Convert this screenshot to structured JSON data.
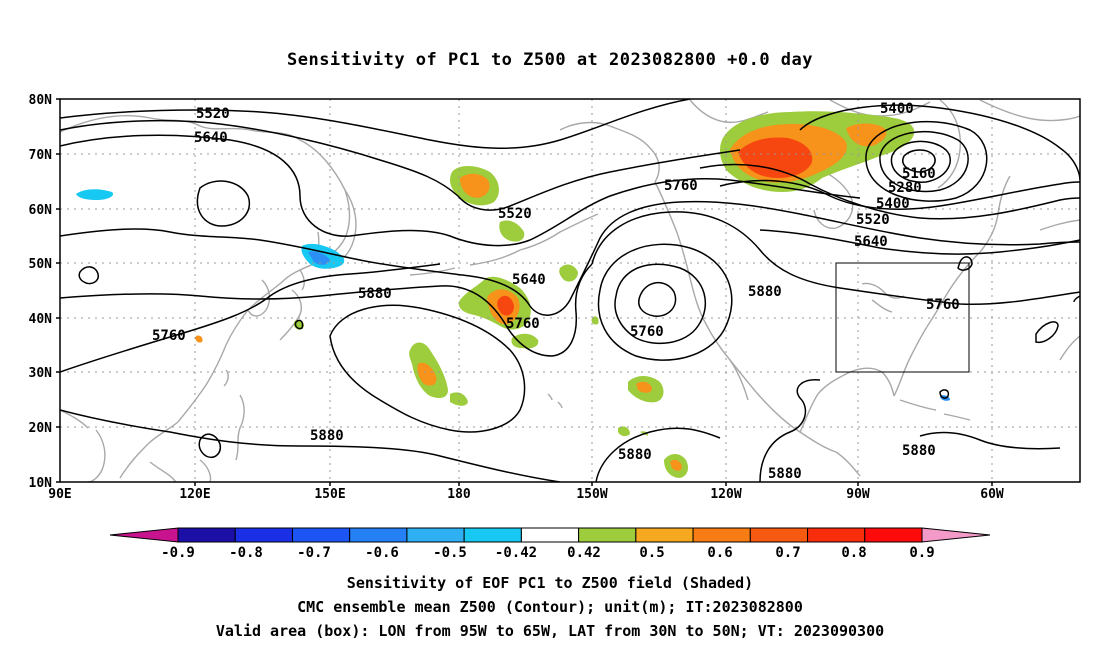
{
  "title": "Sensitivity of PC1 to Z500 at 2023082800 +0.0 day",
  "lat_labels": [
    "80N",
    "70N",
    "60N",
    "50N",
    "40N",
    "30N",
    "20N",
    "10N"
  ],
  "lon_labels": [
    "90E",
    "120E",
    "150E",
    "180",
    "150W",
    "120W",
    "90W",
    "60W"
  ],
  "contour_labels": [
    {
      "text": "5520"
    },
    {
      "text": "5640"
    },
    {
      "text": "5520"
    },
    {
      "text": "5760"
    },
    {
      "text": "5400"
    },
    {
      "text": "5160"
    },
    {
      "text": "5280"
    },
    {
      "text": "5400"
    },
    {
      "text": "5520"
    },
    {
      "text": "5640"
    },
    {
      "text": "5640"
    },
    {
      "text": "5760"
    },
    {
      "text": "5760"
    },
    {
      "text": "5760"
    },
    {
      "text": "5880"
    },
    {
      "text": "5880"
    },
    {
      "text": "5880"
    },
    {
      "text": "5880"
    },
    {
      "text": "5880"
    },
    {
      "text": "5880"
    },
    {
      "text": "5760"
    },
    {
      "text": "5760"
    }
  ],
  "colorbar": {
    "bins": [
      "#c8138f",
      "#1c0fa8",
      "#1a2fe6",
      "#1d55f5",
      "#2580f5",
      "#2fb0f3",
      "#17c8f2",
      "#ffffff",
      "#9dcc3c",
      "#f6a820",
      "#f77c13",
      "#f65a10",
      "#f72d0c",
      "#ff0a0a",
      "#f49ac8"
    ],
    "labels": [
      "-0.9",
      "-0.8",
      "-0.7",
      "-0.6",
      "-0.5",
      "-0.42",
      "0.42",
      "0.5",
      "0.6",
      "0.7",
      "0.8",
      "0.9"
    ]
  },
  "footer": {
    "line1": "Sensitivity of EOF PC1 to Z500 field (Shaded)",
    "line2": "CMC ensemble mean Z500 (Contour); unit(m); IT:2023082800",
    "line3": "Valid area (box): LON from 95W to 65W, LAT from 30N to 50N; VT: 2023090300"
  },
  "colors": {
    "coast": "#a8a8a8",
    "contour": "#000000",
    "grid": "#9a9a9a",
    "green": "#9dcc3c",
    "orange": "#f7921b",
    "red": "#f5470f",
    "cyan": "#17c8f2",
    "blue": "#2b8ff5"
  }
}
